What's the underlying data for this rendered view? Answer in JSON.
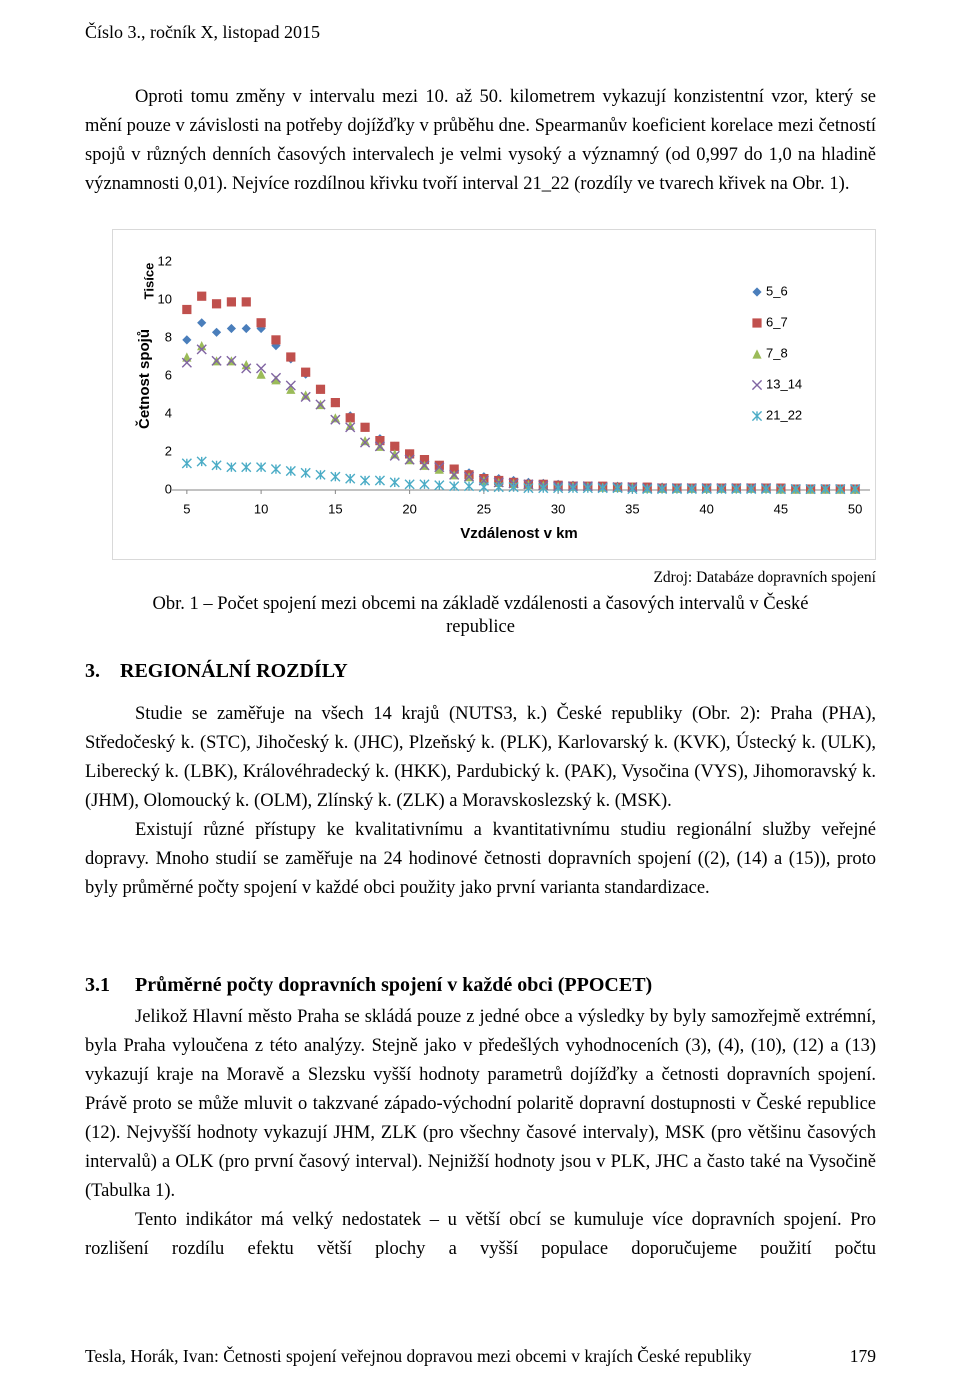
{
  "header": {
    "text": "Číslo 3., ročník X, listopad 2015"
  },
  "intro": {
    "paragraph": "Oproti tomu změny v intervalu mezi 10. až 50. kilometrem vykazují konzistentní vzor, který se mění pouze v závislosti na potřeby dojížďky v průběhu dne. Spearmanův koeficient korelace mezi četností spojů v různých denních časových intervalech je velmi vysoký a významný (od 0,997 do 1,0 na hladině významnosti 0,01). Nejvíce rozdílnou křivku tvoří interval 21_22 (rozdíly ve tvarech křivek na Obr. 1)."
  },
  "chart_data": {
    "type": "scatter",
    "y_label_unit": "Tisíce",
    "y_label": "Četnost spojů",
    "x_label": "Vzdálenost v km",
    "xlim": [
      4,
      51
    ],
    "xticks": [
      5,
      10,
      15,
      20,
      25,
      30,
      35,
      40,
      45,
      50
    ],
    "ylim": [
      0,
      12
    ],
    "yticks": [
      0,
      2,
      4,
      6,
      8,
      10,
      12
    ],
    "grid": false,
    "legend": "right",
    "x": [
      5,
      6,
      7,
      8,
      9,
      10,
      11,
      12,
      13,
      14,
      15,
      16,
      17,
      18,
      19,
      20,
      21,
      22,
      23,
      24,
      25,
      26,
      27,
      28,
      29,
      30,
      31,
      32,
      33,
      34,
      35,
      36,
      37,
      38,
      39,
      40,
      41,
      42,
      43,
      44,
      45,
      46,
      47,
      48,
      49,
      50
    ],
    "series": [
      {
        "name": "5_6",
        "color": "#4a7ebb",
        "marker": "diamond",
        "values": [
          7.9,
          8.8,
          8.3,
          8.5,
          8.5,
          8.5,
          7.6,
          6.9,
          6.1,
          5.3,
          4.6,
          3.9,
          3.3,
          2.7,
          2.3,
          1.9,
          1.6,
          1.3,
          1.1,
          0.9,
          0.7,
          0.6,
          0.5,
          0.4,
          0.35,
          0.3,
          0.25,
          0.2,
          0.2,
          0.2,
          0.15,
          0.15,
          0.15,
          0.1,
          0.1,
          0.1,
          0.1,
          0.1,
          0.1,
          0.1,
          0.1,
          0.05,
          0.05,
          0.05,
          0.05,
          0.05
        ]
      },
      {
        "name": "6_7",
        "color": "#c0504d",
        "marker": "square",
        "values": [
          9.5,
          10.2,
          9.8,
          9.9,
          9.9,
          8.8,
          7.9,
          7.0,
          6.2,
          5.3,
          4.6,
          3.8,
          3.3,
          2.6,
          2.3,
          1.9,
          1.6,
          1.3,
          1.1,
          0.8,
          0.6,
          0.5,
          0.4,
          0.3,
          0.3,
          0.25,
          0.2,
          0.2,
          0.2,
          0.15,
          0.15,
          0.15,
          0.1,
          0.1,
          0.1,
          0.1,
          0.1,
          0.1,
          0.1,
          0.1,
          0.1,
          0.05,
          0.05,
          0.05,
          0.05,
          0.05
        ]
      },
      {
        "name": "7_8",
        "color": "#9bbb59",
        "marker": "triangle",
        "values": [
          7.0,
          7.6,
          6.8,
          6.8,
          6.6,
          6.1,
          5.8,
          5.3,
          5.0,
          4.5,
          3.8,
          3.4,
          2.6,
          2.3,
          1.9,
          1.6,
          1.3,
          1.1,
          0.8,
          0.7,
          0.5,
          0.4,
          0.35,
          0.3,
          0.25,
          0.2,
          0.2,
          0.2,
          0.15,
          0.15,
          0.15,
          0.1,
          0.1,
          0.1,
          0.1,
          0.1,
          0.1,
          0.1,
          0.1,
          0.1,
          0.05,
          0.05,
          0.05,
          0.05,
          0.05,
          0.05
        ]
      },
      {
        "name": "13_14",
        "color": "#8064a2",
        "marker": "x",
        "values": [
          6.7,
          7.4,
          6.8,
          6.8,
          6.4,
          6.4,
          5.9,
          5.5,
          4.9,
          4.5,
          3.7,
          3.3,
          2.5,
          2.3,
          1.8,
          1.6,
          1.3,
          1.2,
          0.8,
          0.7,
          0.5,
          0.4,
          0.35,
          0.3,
          0.25,
          0.2,
          0.2,
          0.2,
          0.15,
          0.15,
          0.15,
          0.1,
          0.1,
          0.1,
          0.1,
          0.1,
          0.1,
          0.1,
          0.1,
          0.1,
          0.05,
          0.05,
          0.05,
          0.05,
          0.05,
          0.05
        ]
      },
      {
        "name": "21_22",
        "color": "#4bacc6",
        "marker": "asterisk",
        "values": [
          1.4,
          1.5,
          1.3,
          1.2,
          1.2,
          1.2,
          1.1,
          1.0,
          0.9,
          0.8,
          0.7,
          0.6,
          0.5,
          0.5,
          0.4,
          0.3,
          0.3,
          0.25,
          0.2,
          0.2,
          0.15,
          0.15,
          0.15,
          0.1,
          0.1,
          0.1,
          0.1,
          0.1,
          0.1,
          0.1,
          0.05,
          0.05,
          0.05,
          0.05,
          0.05,
          0.05,
          0.05,
          0.05,
          0.05,
          0.05,
          0.05,
          0.05,
          0.05,
          0.05,
          0.05,
          0.05
        ]
      }
    ]
  },
  "figure": {
    "source": "Zdroj: Databáze dopravních spojení",
    "caption": "Obr. 1 – Počet spojení mezi obcemi na základě vzdálenosti a časových intervalů v České republice"
  },
  "section_3": {
    "number": "3.",
    "title": "REGIONÁLNÍ ROZDÍLY",
    "paragraphs": [
      "Studie se zaměřuje na všech 14 krajů (NUTS3, k.) České republiky (Obr. 2): Praha (PHA), Středočeský k. (STC), Jihočeský k. (JHC), Plzeňský k. (PLK), Karlovarský k. (KVK), Ústecký k. (ULK), Liberecký k. (LBK), Královéhradecký k. (HKK), Pardubický k. (PAK), Vysočina (VYS), Jihomoravský k. (JHM), Olomoucký k. (OLM), Zlínský k. (ZLK) a Moravskoslezský k. (MSK).",
      "Existují různé přístupy ke kvalitativnímu a kvantitativnímu studiu regionální služby veřejné dopravy. Mnoho studií se zaměřuje na 24 hodinové četnosti dopravních spojení ((2), (14) a (15)), proto byly průměrné počty spojení v každé obci použity jako první varianta standardizace."
    ]
  },
  "section_3_1": {
    "number": "3.1",
    "title": "Průměrné počty dopravních spojení v každé obci (PPOCET)",
    "paragraphs": [
      "Jelikož Hlavní město Praha se skládá pouze z jedné obce a výsledky by byly samozřejmě extrémní, byla Praha vyloučena z této analýzy. Stejně jako v předešlých vyhodnoceních (3), (4), (10), (12) a (13) vykazují kraje na Moravě a Slezsku vyšší hodnoty parametrů dojížďky a četnosti dopravních spojení. Právě proto se může mluvit o takzvané západo-východní polaritě dopravní dostupnosti v České republice (12). Nejvyšší hodnoty vykazují JHM, ZLK (pro všechny časové intervaly), MSK (pro většinu časových intervalů) a OLK (pro první časový interval). Nejnižší hodnoty jsou v PLK, JHC a často také na Vysočině (Tabulka 1).",
      "Tento indikátor má velký nedostatek – u větší obcí se kumuluje více dopravních spojení. Pro rozlišení rozdílu efektu větší plochy a vyšší populace doporučujeme použití počtu"
    ]
  },
  "footer": {
    "citation": "Tesla, Horák, Ivan: Četnosti spojení veřejnou dopravou mezi obcemi v krajích České republiky",
    "page": 179
  }
}
